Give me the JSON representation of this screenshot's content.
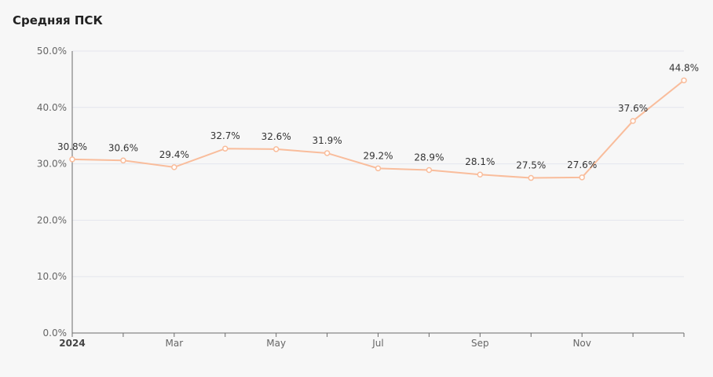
{
  "chart_data": {
    "type": "line",
    "title": "Средняя ПСК",
    "x": [
      "2024-01",
      "2024-02",
      "2024-03",
      "2024-04",
      "2024-05",
      "2024-06",
      "2024-07",
      "2024-08",
      "2024-09",
      "2024-10",
      "2024-11",
      "2024-12",
      "2025-01"
    ],
    "xtick_labels": [
      {
        "label": "2024",
        "bold": true
      },
      {
        "label": "",
        "bold": false
      },
      {
        "label": "Mar",
        "bold": false
      },
      {
        "label": "",
        "bold": false
      },
      {
        "label": "May",
        "bold": false
      },
      {
        "label": "",
        "bold": false
      },
      {
        "label": "Jul",
        "bold": false
      },
      {
        "label": "",
        "bold": false
      },
      {
        "label": "Sep",
        "bold": false
      },
      {
        "label": "",
        "bold": false
      },
      {
        "label": "Nov",
        "bold": false
      },
      {
        "label": "",
        "bold": false
      },
      {
        "label": "",
        "bold": false
      }
    ],
    "values": [
      30.8,
      30.6,
      29.4,
      32.7,
      32.6,
      31.9,
      29.2,
      28.9,
      28.1,
      27.5,
      27.6,
      37.6,
      44.8
    ],
    "value_labels": [
      "30.8%",
      "30.6%",
      "29.4%",
      "32.7%",
      "32.6%",
      "31.9%",
      "29.2%",
      "28.9%",
      "28.1%",
      "27.5%",
      "27.6%",
      "37.6%",
      "44.8%"
    ],
    "yticks": [
      0,
      10,
      20,
      30,
      40,
      50
    ],
    "ytick_labels": [
      "0.0%",
      "10.0%",
      "20.0%",
      "30.0%",
      "40.0%",
      "50.0%"
    ],
    "ylim": [
      0,
      50
    ],
    "grid": true,
    "line_color": "#f9bd9c",
    "marker_fill": "#ffffff"
  }
}
